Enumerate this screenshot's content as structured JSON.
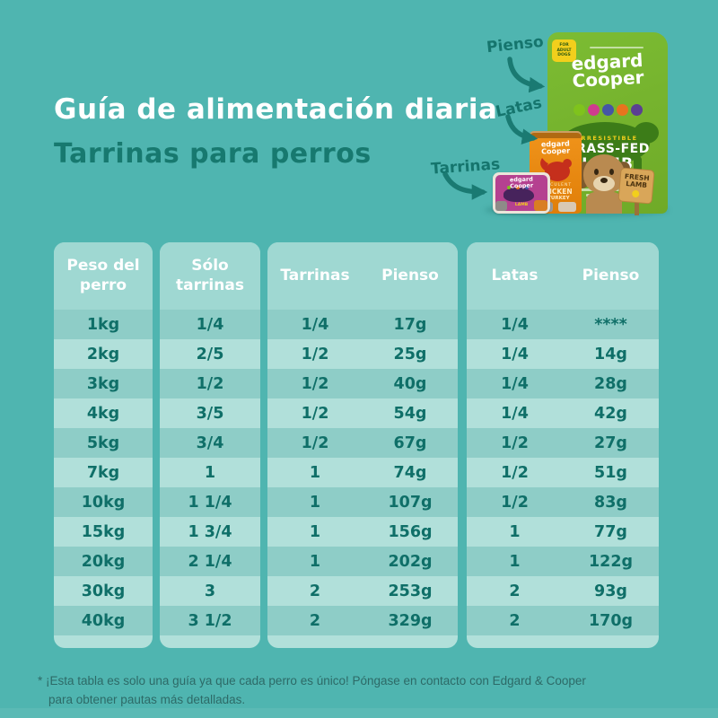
{
  "page": {
    "title": "Guía de alimentación diaria",
    "subtitle": "Tarrinas para perros",
    "background_color": "#4fb5b0"
  },
  "product_callouts": [
    {
      "label": "Pienso"
    },
    {
      "label": "Latas"
    },
    {
      "label": "Tarrinas"
    }
  ],
  "products": {
    "brand": {
      "line1": "edgard",
      "line2": "Cooper"
    },
    "bag": {
      "badge": "FOR ADULT DOGS",
      "tag": "IRRESISTIBLE",
      "name_line1": "GRASS-FED",
      "name_line2": "LAMB"
    },
    "can": {
      "tag": "SUCCULENT",
      "name_line1": "CHICKEN",
      "name_line2": "& TURKEY"
    },
    "tray": {
      "name": "LAMB"
    },
    "sign": {
      "line1": "FRESH",
      "line2": "LAMB"
    }
  },
  "tables": [
    {
      "name": "peso-del-perro",
      "headers": [
        "Peso del perro"
      ],
      "rows": [
        "1kg",
        "2kg",
        "3kg",
        "4kg",
        "5kg",
        "7kg",
        "10kg",
        "15kg",
        "20kg",
        "30kg",
        "40kg"
      ]
    },
    {
      "name": "solo-tarrinas",
      "headers": [
        "Sólo tarrinas"
      ],
      "rows": [
        "1/4",
        "2/5",
        "1/2",
        "3/5",
        "3/4",
        "1",
        "1 1/4",
        "1 3/4",
        "2 1/4",
        "3",
        "3 1/2"
      ]
    },
    {
      "name": "tarrinas-y-pienso",
      "headers": [
        "Tarrinas",
        "Pienso"
      ],
      "rows": [
        [
          "1/4",
          "17g"
        ],
        [
          "1/2",
          "25g"
        ],
        [
          "1/2",
          "40g"
        ],
        [
          "1/2",
          "54g"
        ],
        [
          "1/2",
          "67g"
        ],
        [
          "1",
          "74g"
        ],
        [
          "1",
          "107g"
        ],
        [
          "1",
          "156g"
        ],
        [
          "1",
          "202g"
        ],
        [
          "2",
          "253g"
        ],
        [
          "2",
          "329g"
        ]
      ]
    },
    {
      "name": "latas-y-pienso",
      "headers": [
        "Latas",
        "Pienso"
      ],
      "rows": [
        [
          "1/4",
          "****"
        ],
        [
          "1/4",
          "14g"
        ],
        [
          "1/4",
          "28g"
        ],
        [
          "1/4",
          "42g"
        ],
        [
          "1/2",
          "27g"
        ],
        [
          "1/2",
          "51g"
        ],
        [
          "1/2",
          "83g"
        ],
        [
          "1",
          "77g"
        ],
        [
          "1",
          "122g"
        ],
        [
          "2",
          "93g"
        ],
        [
          "2",
          "170g"
        ]
      ]
    }
  ],
  "chart_data": {
    "type": "table",
    "title": "Guía de alimentación diaria - Tarrinas para perros",
    "columns": [
      "Peso del perro",
      "Sólo tarrinas",
      "Tarrinas",
      "Pienso",
      "Latas",
      "Pienso"
    ],
    "rows": [
      [
        "1kg",
        "1/4",
        "1/4",
        "17g",
        "1/4",
        "****"
      ],
      [
        "2kg",
        "2/5",
        "1/2",
        "25g",
        "1/4",
        "14g"
      ],
      [
        "3kg",
        "1/2",
        "1/2",
        "40g",
        "1/4",
        "28g"
      ],
      [
        "4kg",
        "3/5",
        "1/2",
        "54g",
        "1/4",
        "42g"
      ],
      [
        "5kg",
        "3/4",
        "1/2",
        "67g",
        "1/2",
        "27g"
      ],
      [
        "7kg",
        "1",
        "1",
        "74g",
        "1/2",
        "51g"
      ],
      [
        "10kg",
        "1 1/4",
        "1",
        "107g",
        "1/2",
        "83g"
      ],
      [
        "15kg",
        "1 3/4",
        "1",
        "156g",
        "1",
        "77g"
      ],
      [
        "20kg",
        "2 1/4",
        "1",
        "202g",
        "1",
        "122g"
      ],
      [
        "30kg",
        "3",
        "2",
        "253g",
        "2",
        "93g"
      ],
      [
        "40kg",
        "3 1/2",
        "2",
        "329g",
        "2",
        "170g"
      ]
    ]
  },
  "footnote": {
    "line1": "* ¡Esta tabla es solo una guía ya que cada perro es único! Póngase en contacto con Edgard & Cooper",
    "line2": "para obtener pautas más detalladas."
  },
  "colors": {
    "background": "#4fb5b0",
    "title_text": "#ffffff",
    "subtitle_text": "#17796f",
    "table_header_bg": "#9fd8d2",
    "table_row_medium": "#8ecdc7",
    "table_row_light": "#b1e0da",
    "cell_text": "#0f6f68",
    "bag_green": "#74b62e",
    "can_orange": "#e8870f",
    "tray_pink": "#b54190",
    "accent_yellow": "#f2cf1c"
  }
}
